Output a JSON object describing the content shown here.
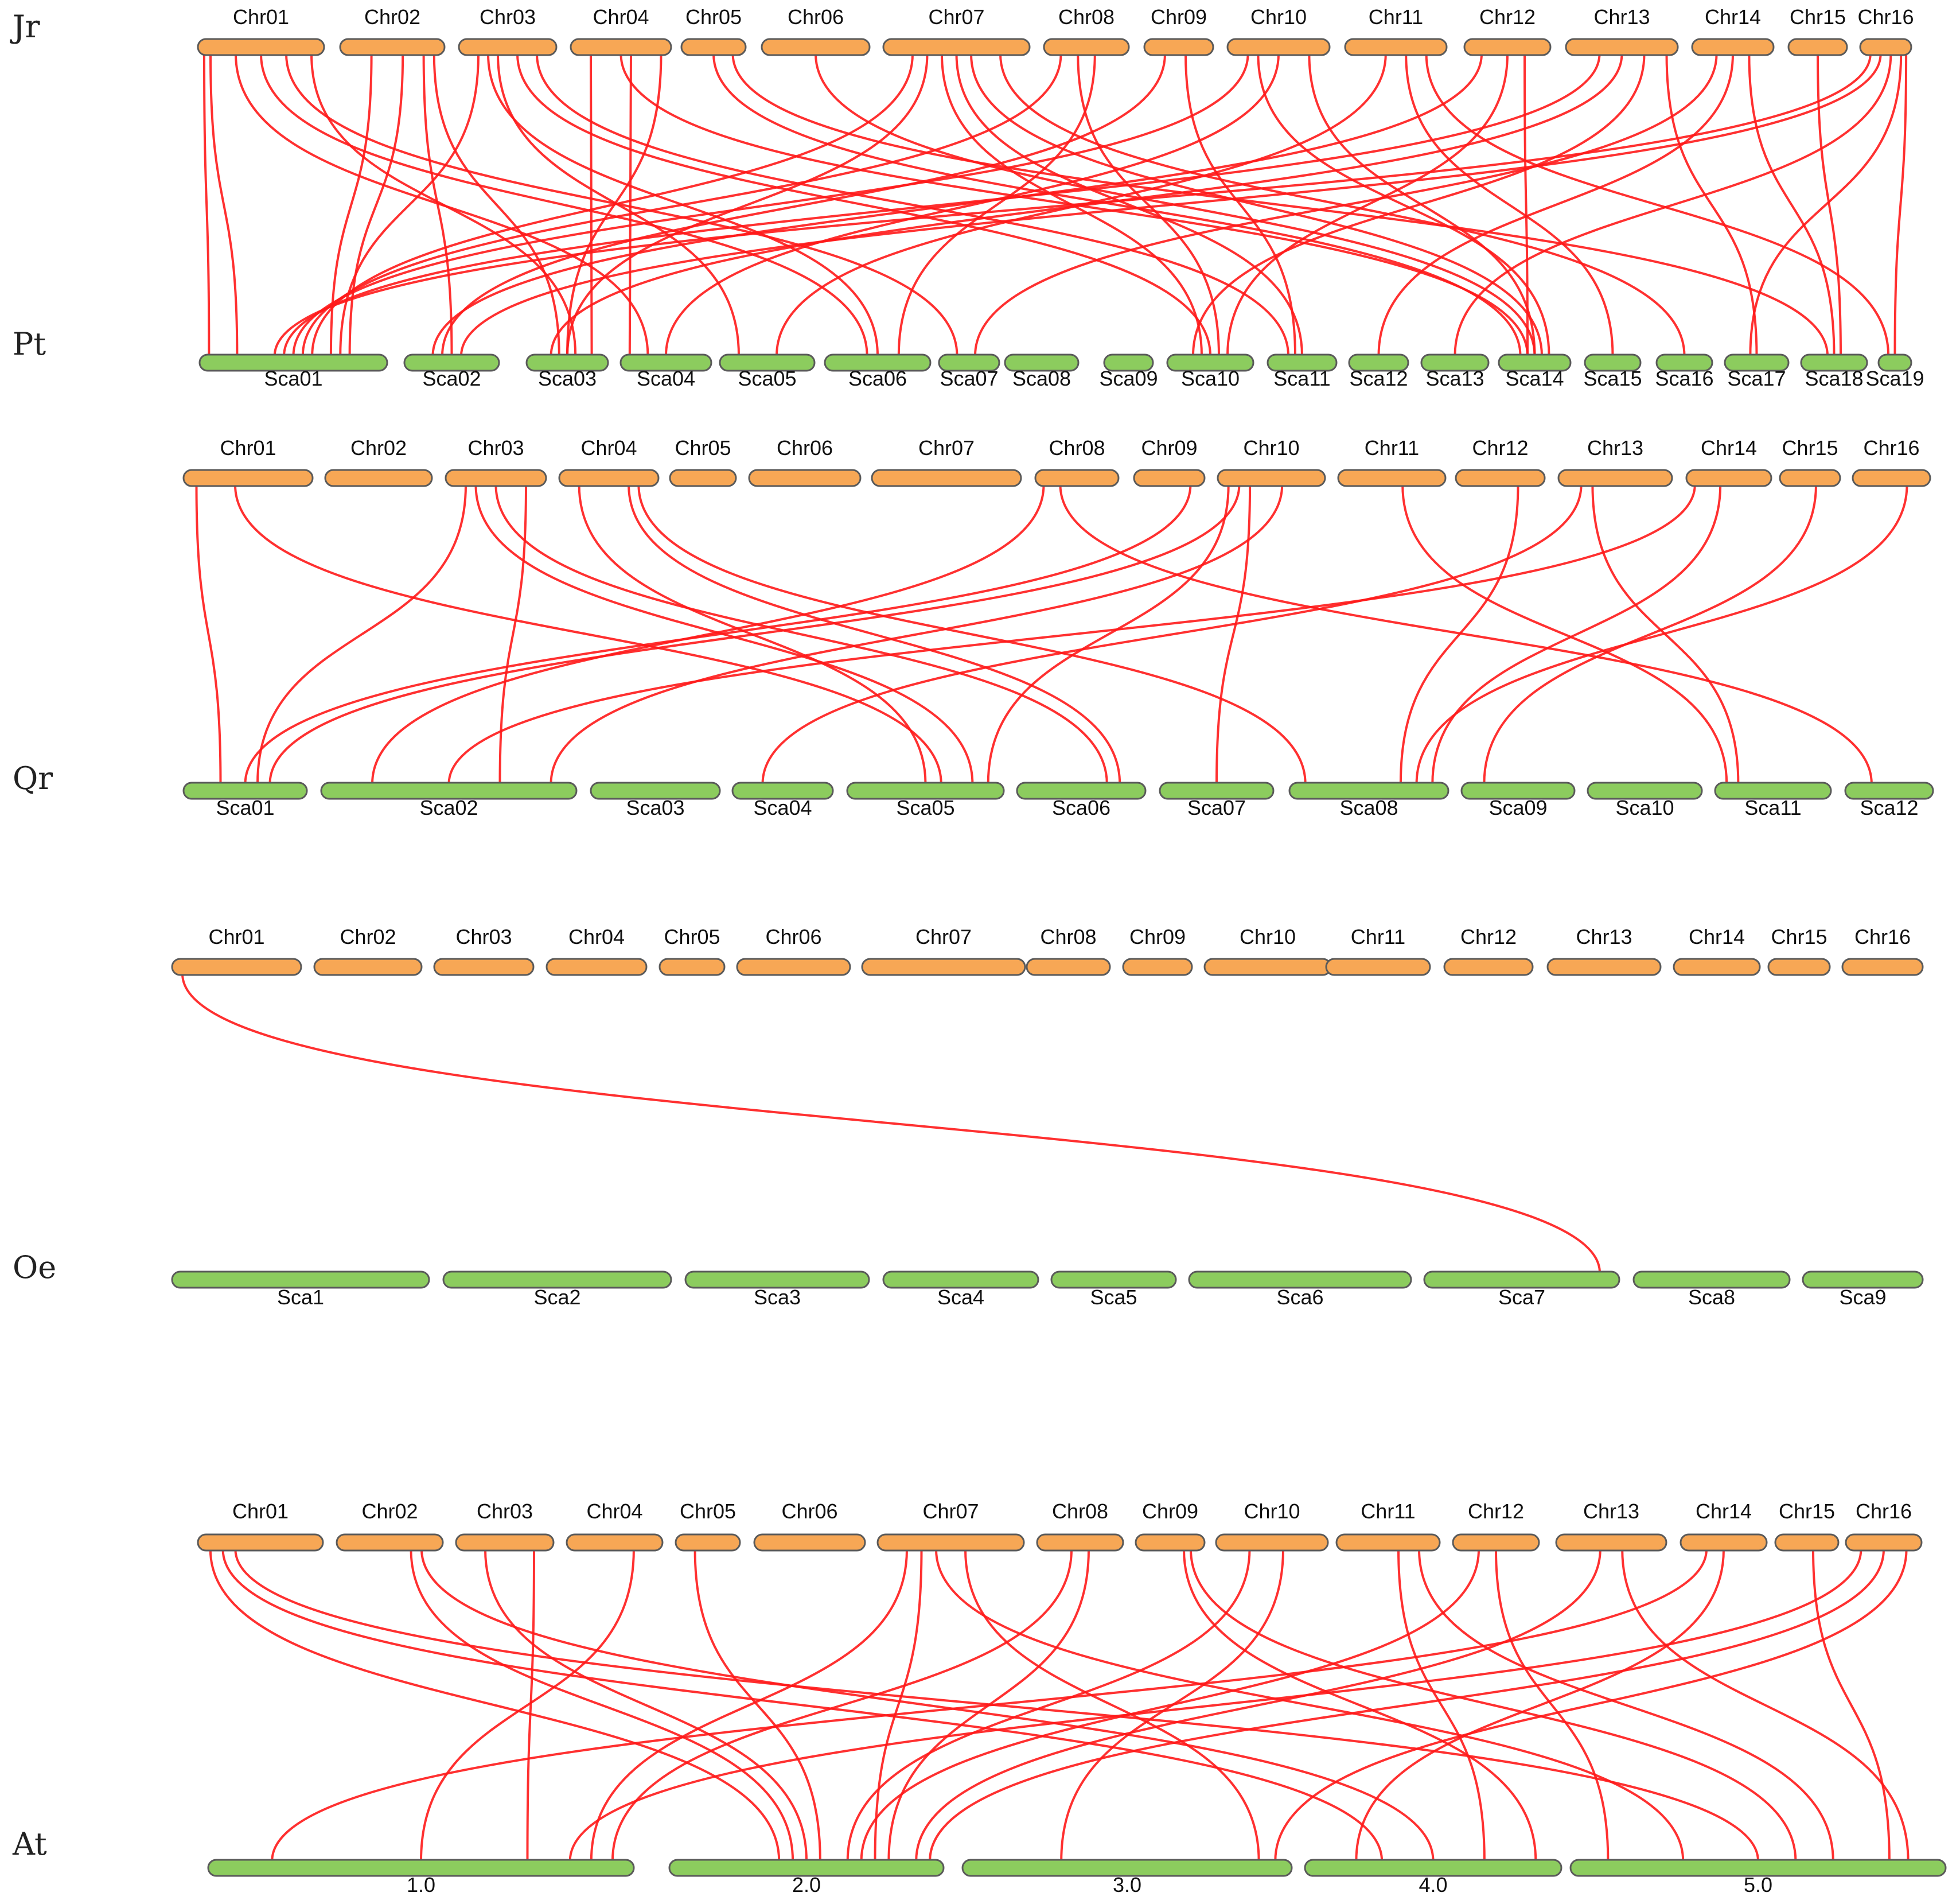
{
  "colors": {
    "top_chromosome": "#f7a755",
    "bottom_chromosome": "#8ccc5e",
    "outline": "#5a5a5a",
    "link": "#ff1a1a"
  },
  "panels": [
    {
      "top_species": "Jr",
      "bottom_species": "Pt",
      "top_chromosomes": [
        "Chr01",
        "Chr02",
        "Chr03",
        "Chr04",
        "Chr05",
        "Chr06",
        "Chr07",
        "Chr08",
        "Chr09",
        "Chr10",
        "Chr11",
        "Chr12",
        "Chr13",
        "Chr14",
        "Chr15",
        "Chr16"
      ],
      "bottom_chromosomes": [
        "Sca01",
        "Sca02",
        "Sca03",
        "Sca04",
        "Sca05",
        "Sca06",
        "Sca07",
        "Sca08",
        "Sca09",
        "Sca10",
        "Sca11",
        "Sca12",
        "Sca13",
        "Sca14",
        "Sca15",
        "Sca16",
        "Sca17",
        "Sca18",
        "Sca19"
      ],
      "links": [
        [
          0,
          0.05,
          0,
          0.05
        ],
        [
          0,
          0.1,
          0,
          0.2
        ],
        [
          0,
          0.3,
          3,
          0.3
        ],
        [
          0,
          0.5,
          5,
          0.4
        ],
        [
          0,
          0.7,
          6,
          0.3
        ],
        [
          0,
          0.9,
          2,
          0.6
        ],
        [
          1,
          0.3,
          0,
          0.7
        ],
        [
          1,
          0.6,
          0,
          0.8
        ],
        [
          1,
          0.8,
          1,
          0.5
        ],
        [
          1,
          0.9,
          2,
          0.4
        ],
        [
          2,
          0.2,
          0,
          0.75
        ],
        [
          2,
          0.4,
          4,
          0.2
        ],
        [
          2,
          0.6,
          9,
          0.5
        ],
        [
          2,
          0.8,
          10,
          0.3
        ],
        [
          3,
          0.2,
          2,
          0.8
        ],
        [
          3,
          0.6,
          3,
          0.1
        ],
        [
          3,
          0.9,
          2,
          0.5
        ],
        [
          3,
          0.5,
          13,
          0.4
        ],
        [
          4,
          0.5,
          13,
          0.3
        ],
        [
          5,
          0.5,
          13,
          0.5
        ],
        [
          6,
          0.2,
          0,
          0.6
        ],
        [
          6,
          0.3,
          2,
          0.5
        ],
        [
          6,
          0.4,
          9,
          0.4
        ],
        [
          6,
          0.5,
          10,
          0.5
        ],
        [
          6,
          0.6,
          13,
          0.6
        ],
        [
          6,
          0.8,
          15,
          0.5
        ],
        [
          7,
          0.2,
          0,
          0.55
        ],
        [
          7,
          0.4,
          9,
          0.6
        ],
        [
          7,
          0.6,
          5,
          0.7
        ],
        [
          8,
          0.3,
          1,
          0.4
        ],
        [
          8,
          0.6,
          10,
          0.4
        ],
        [
          9,
          0.2,
          0,
          0.5
        ],
        [
          9,
          0.5,
          3,
          0.5
        ],
        [
          9,
          0.8,
          13,
          0.5
        ],
        [
          10,
          0.4,
          4,
          0.6
        ],
        [
          10,
          0.6,
          14,
          0.5
        ],
        [
          11,
          0.2,
          1,
          0.3
        ],
        [
          11,
          0.5,
          9,
          0.7
        ],
        [
          11,
          0.7,
          13,
          0.4
        ],
        [
          12,
          0.3,
          0,
          0.45
        ],
        [
          12,
          0.5,
          2,
          0.3
        ],
        [
          12,
          0.7,
          9,
          0.3
        ],
        [
          12,
          0.9,
          16,
          0.5
        ],
        [
          13,
          0.3,
          6,
          0.6
        ],
        [
          13,
          0.5,
          11,
          0.5
        ],
        [
          13,
          0.7,
          17,
          0.5
        ],
        [
          14,
          0.5,
          17,
          0.6
        ],
        [
          15,
          0.2,
          0,
          0.4
        ],
        [
          15,
          0.4,
          1,
          0.6
        ],
        [
          15,
          0.6,
          12,
          0.5
        ],
        [
          15,
          0.8,
          16,
          0.4
        ],
        [
          15,
          0.9,
          18,
          0.5
        ],
        [
          4,
          0.8,
          17,
          0.4
        ],
        [
          9,
          0.3,
          13,
          0.7
        ],
        [
          2,
          0.3,
          5,
          0.5
        ],
        [
          10,
          0.8,
          18,
          0.3
        ]
      ]
    },
    {
      "top_species": "Jr",
      "bottom_species": "Qr",
      "top_chromosomes": [
        "Chr01",
        "Chr02",
        "Chr03",
        "Chr04",
        "Chr05",
        "Chr06",
        "Chr07",
        "Chr08",
        "Chr09",
        "Chr10",
        "Chr11",
        "Chr12",
        "Chr13",
        "Chr14",
        "Chr15",
        "Chr16"
      ],
      "bottom_chromosomes": [
        "Sca01",
        "Sca02",
        "Sca03",
        "Sca04",
        "Sca05",
        "Sca06",
        "Sca07",
        "Sca08",
        "Sca09",
        "Sca10",
        "Sca11",
        "Sca12"
      ],
      "links": [
        [
          0,
          0.1,
          0,
          0.3
        ],
        [
          0,
          0.4,
          4,
          0.6
        ],
        [
          2,
          0.2,
          0,
          0.6
        ],
        [
          2,
          0.3,
          4,
          0.8
        ],
        [
          2,
          0.5,
          5,
          0.7
        ],
        [
          2,
          0.8,
          1,
          0.7
        ],
        [
          3,
          0.2,
          4,
          0.5
        ],
        [
          3,
          0.7,
          5,
          0.8
        ],
        [
          3,
          0.8,
          7,
          0.1
        ],
        [
          7,
          0.1,
          1,
          0.2
        ],
        [
          7,
          0.3,
          11,
          0.3
        ],
        [
          8,
          0.8,
          0,
          0.5
        ],
        [
          9,
          0.1,
          4,
          0.9
        ],
        [
          9,
          0.2,
          0,
          0.7
        ],
        [
          9,
          0.3,
          6,
          0.5
        ],
        [
          9,
          0.6,
          1,
          0.9
        ],
        [
          10,
          0.6,
          10,
          0.1
        ],
        [
          11,
          0.7,
          7,
          0.7
        ],
        [
          12,
          0.2,
          3,
          0.3
        ],
        [
          12,
          0.3,
          10,
          0.2
        ],
        [
          13,
          0.1,
          1,
          0.5
        ],
        [
          13,
          0.4,
          7,
          0.9
        ],
        [
          14,
          0.6,
          8,
          0.2
        ],
        [
          15,
          0.7,
          7,
          0.8
        ]
      ]
    },
    {
      "top_species": "Jr",
      "bottom_species": "Oe",
      "top_chromosomes": [
        "Chr01",
        "Chr02",
        "Chr03",
        "Chr04",
        "Chr05",
        "Chr06",
        "Chr07",
        "Chr08",
        "Chr09",
        "Chr10",
        "Chr11",
        "Chr12",
        "Chr13",
        "Chr14",
        "Chr15",
        "Chr16"
      ],
      "bottom_chromosomes": [
        "Sca1",
        "Sca2",
        "Sca3",
        "Sca4",
        "Sca5",
        "Sca6",
        "Sca7",
        "Sca8",
        "Sca9"
      ],
      "links": [
        [
          0,
          0.08,
          6,
          0.9
        ]
      ]
    },
    {
      "top_species": "Jr",
      "bottom_species": "At",
      "top_chromosomes": [
        "Chr01",
        "Chr02",
        "Chr03",
        "Chr04",
        "Chr05",
        "Chr06",
        "Chr07",
        "Chr08",
        "Chr09",
        "Chr10",
        "Chr11",
        "Chr12",
        "Chr13",
        "Chr14",
        "Chr15",
        "Chr16"
      ],
      "bottom_chromosomes": [
        "1.0",
        "2.0",
        "3.0",
        "4.0",
        "5.0"
      ],
      "links": [
        [
          0,
          0.1,
          1,
          0.4
        ],
        [
          0,
          0.2,
          3,
          0.3
        ],
        [
          0,
          0.3,
          4,
          0.5
        ],
        [
          1,
          0.7,
          1,
          0.45
        ],
        [
          1,
          0.8,
          3,
          0.5
        ],
        [
          2,
          0.3,
          1,
          0.5
        ],
        [
          2,
          0.8,
          0,
          0.75
        ],
        [
          3,
          0.7,
          0,
          0.5
        ],
        [
          4,
          0.3,
          1,
          0.55
        ],
        [
          6,
          0.2,
          0,
          0.9
        ],
        [
          6,
          0.3,
          1,
          0.75
        ],
        [
          6,
          0.4,
          4,
          0.3
        ],
        [
          6,
          0.6,
          2,
          0.9
        ],
        [
          7,
          0.4,
          0,
          0.95
        ],
        [
          7,
          0.6,
          1,
          0.8
        ],
        [
          8,
          0.7,
          3,
          0.9
        ],
        [
          8,
          0.8,
          4,
          0.6
        ],
        [
          9,
          0.3,
          1,
          0.65
        ],
        [
          9,
          0.6,
          2,
          0.3
        ],
        [
          10,
          0.6,
          3,
          0.7
        ],
        [
          10,
          0.8,
          4,
          0.7
        ],
        [
          11,
          0.3,
          1,
          0.7
        ],
        [
          11,
          0.5,
          4,
          0.1
        ],
        [
          12,
          0.4,
          1,
          0.9
        ],
        [
          12,
          0.6,
          4,
          0.9
        ],
        [
          13,
          0.3,
          0,
          0.15
        ],
        [
          13,
          0.5,
          3,
          0.2
        ],
        [
          14,
          0.6,
          4,
          0.85
        ],
        [
          15,
          0.2,
          0,
          0.85
        ],
        [
          15,
          0.5,
          1,
          0.95
        ],
        [
          15,
          0.8,
          2,
          0.95
        ]
      ]
    }
  ],
  "legend": {}
}
